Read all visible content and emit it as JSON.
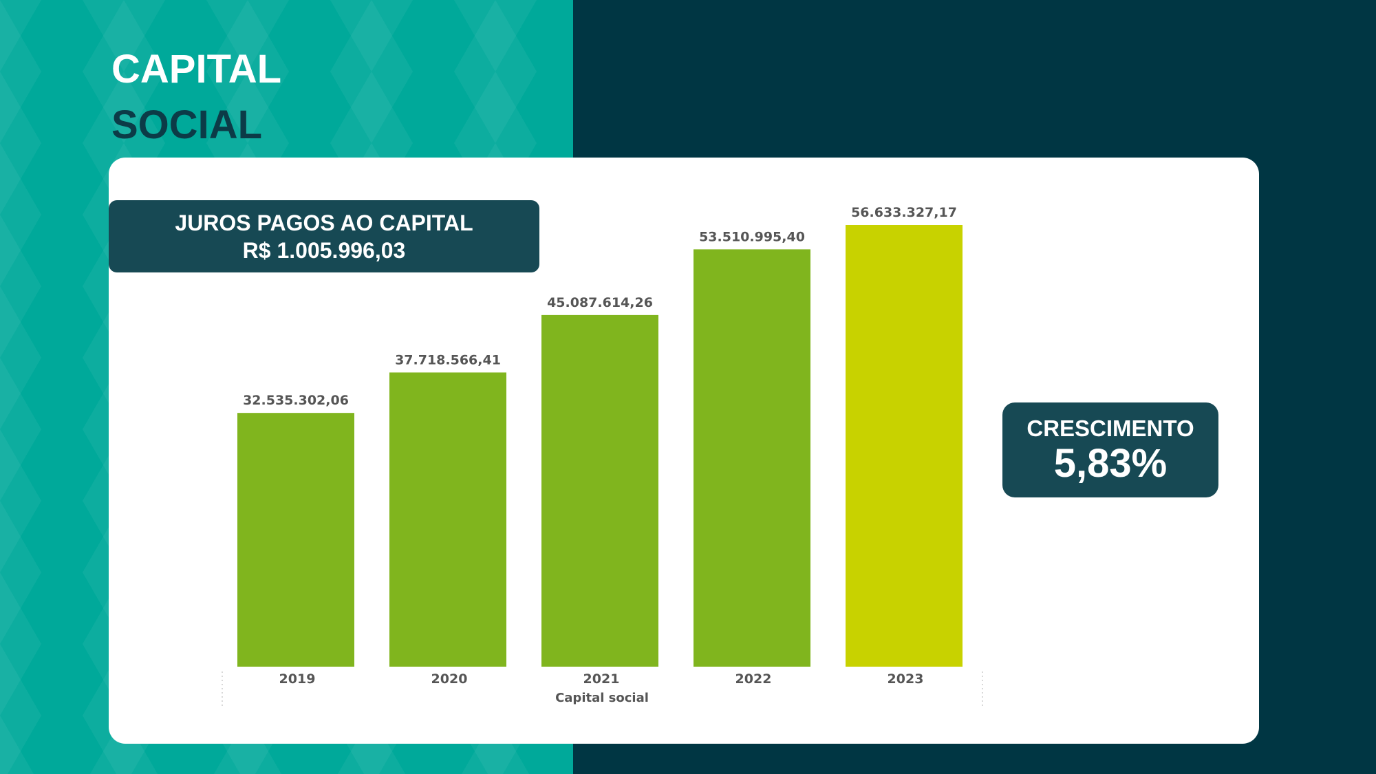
{
  "title": {
    "line1": "CAPITAL",
    "line2": "SOCIAL"
  },
  "juros": {
    "label": "JUROS PAGOS AO CAPITAL",
    "value": "R$ 1.005.996,03"
  },
  "crescimento": {
    "label": "CRESCIMENTO",
    "value": "5,83%"
  },
  "colors": {
    "left_background": "#00a99a",
    "right_background": "#003643",
    "box": "#174954",
    "bar": "#80b51e",
    "bar_highlight": "#c8d200"
  },
  "chart_data": {
    "type": "bar",
    "categories": [
      "2019",
      "2020",
      "2021",
      "2022",
      "2023"
    ],
    "values": [
      32535302.06,
      37718566.41,
      45087614.26,
      53510995.4,
      56633327.17
    ],
    "data_labels": [
      "32.535.302,06",
      "37.718.566,41",
      "45.087.614,26",
      "53.510.995,40",
      "56.633.327,17"
    ],
    "highlight_index": 4,
    "xlabel": "Capital social",
    "ylabel": "",
    "ylim": [
      0,
      56633327.17
    ],
    "grid": false,
    "legend": "none"
  }
}
